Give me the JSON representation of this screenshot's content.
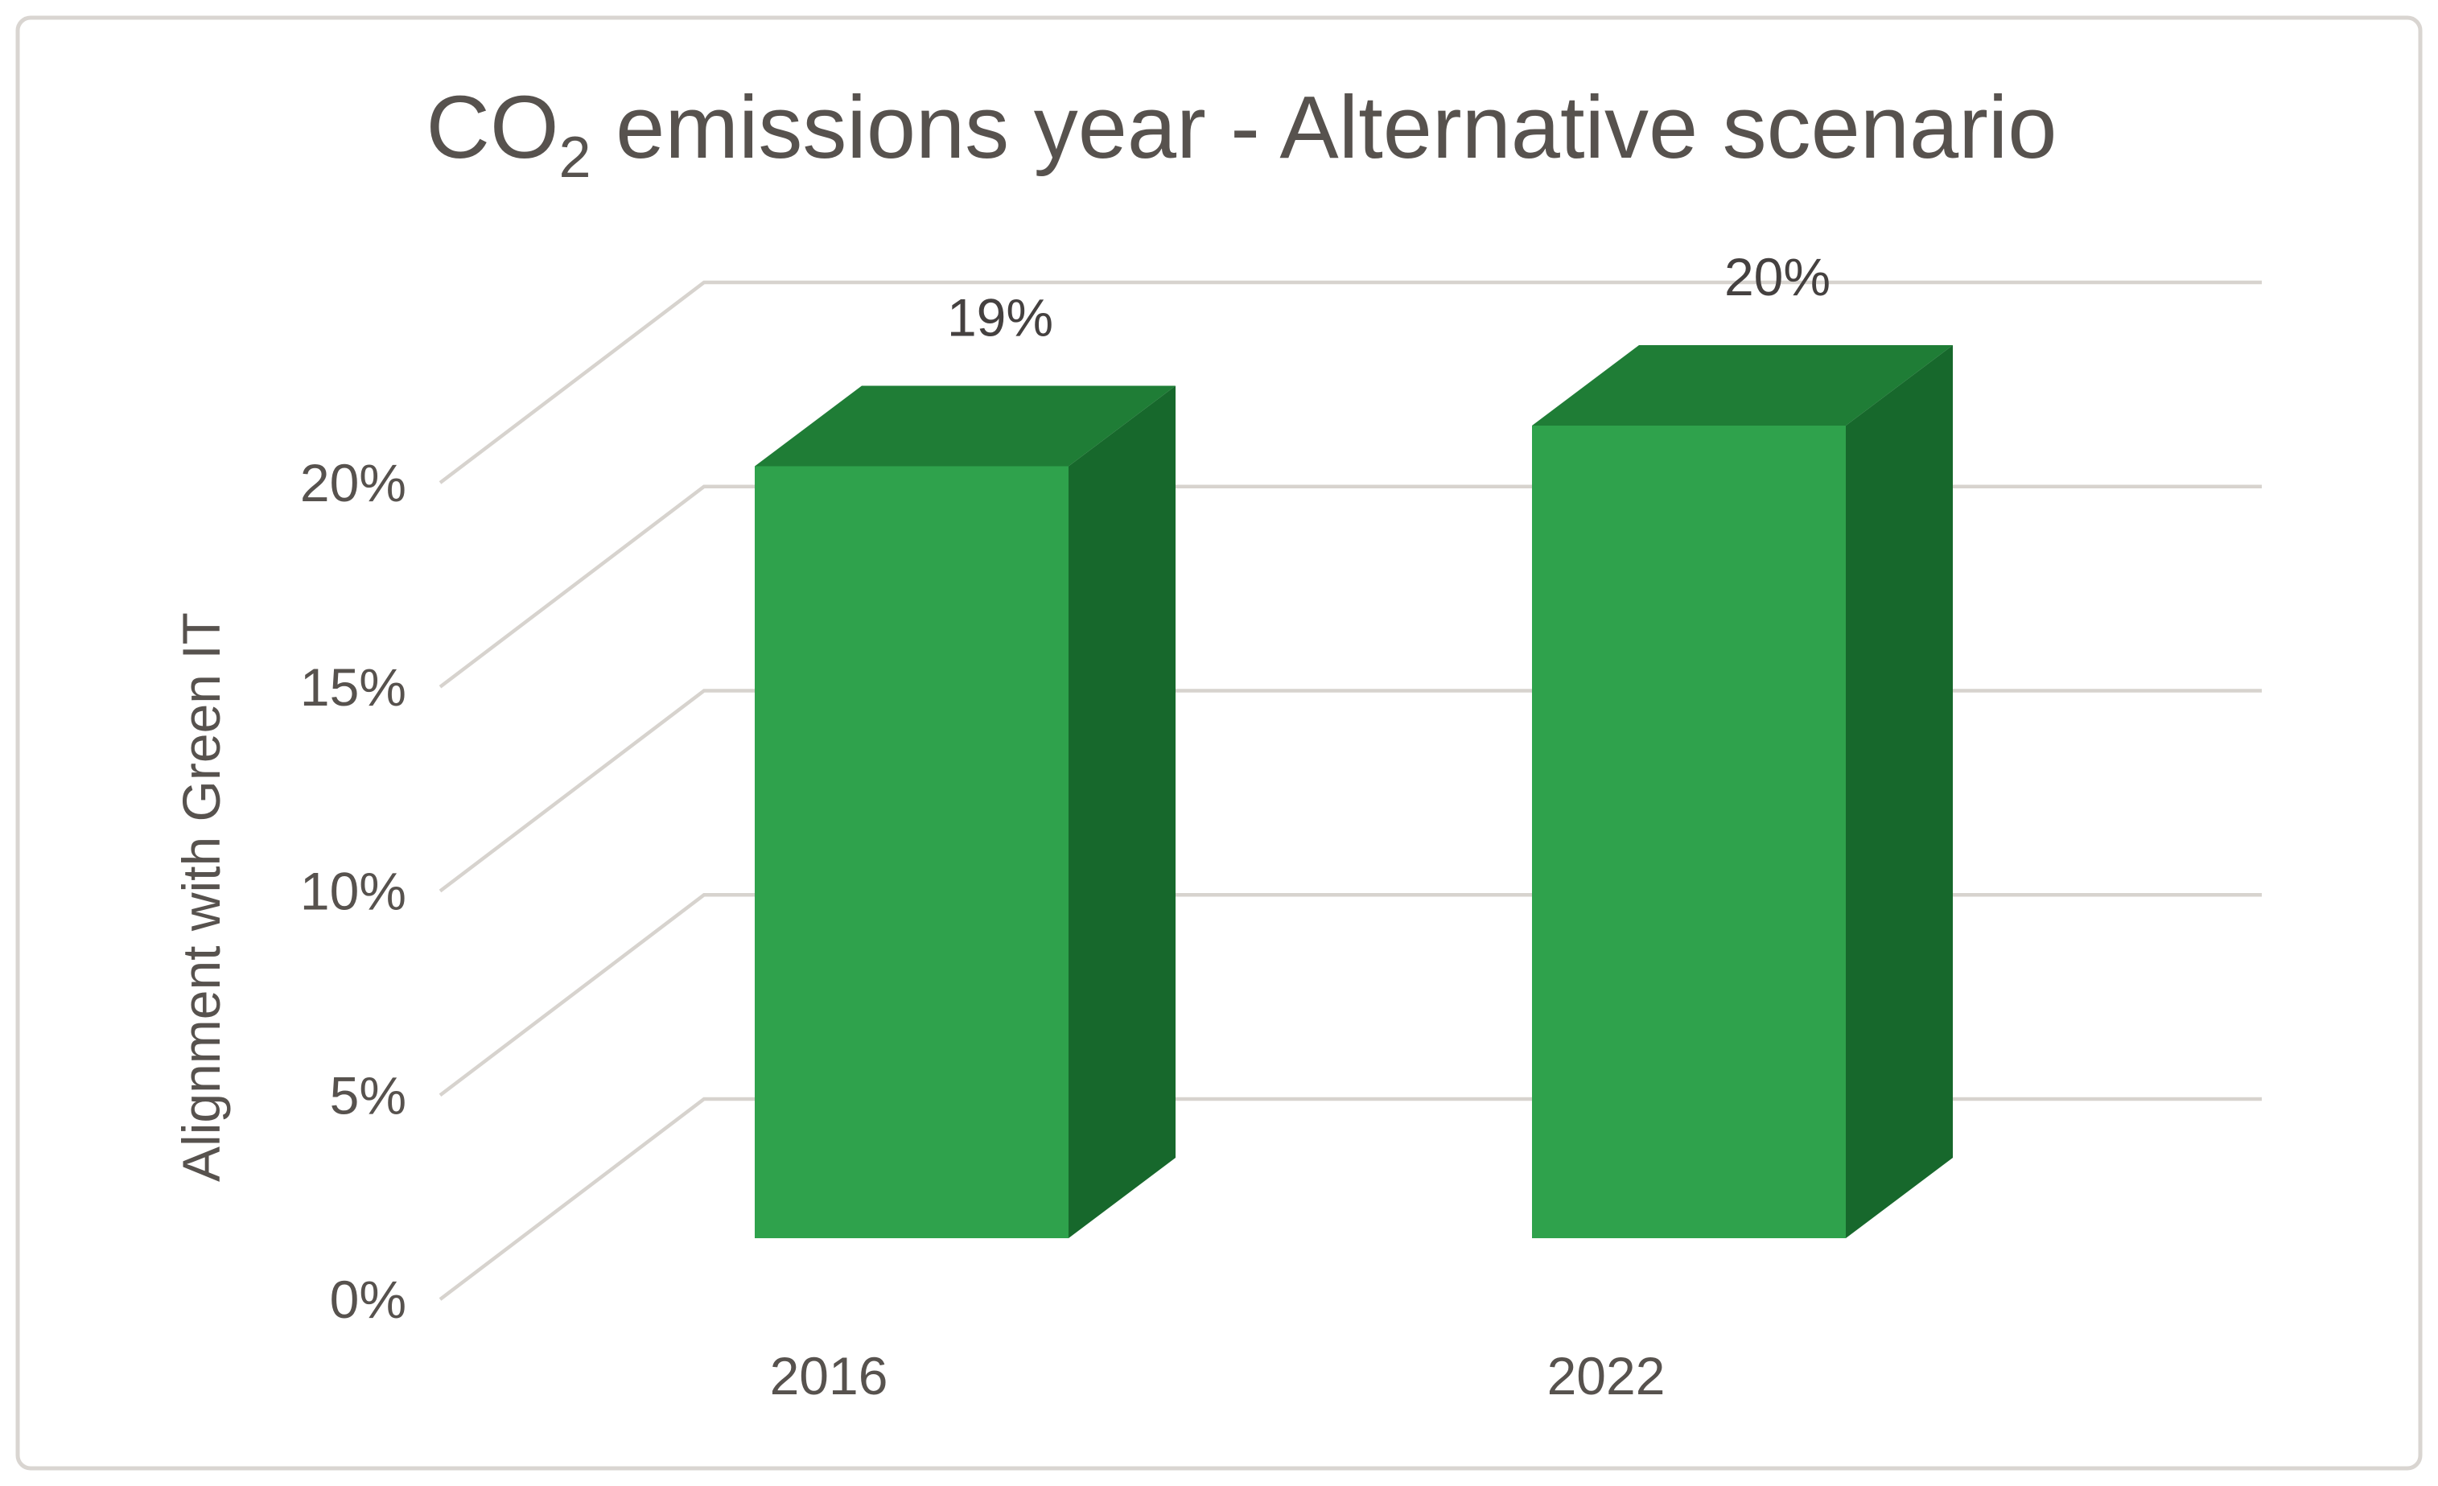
{
  "window": {
    "background": "#ffffff",
    "border_color": "#d9d5d1"
  },
  "chart_data": {
    "type": "bar",
    "projection": "3d",
    "title": {
      "prefix": "CO",
      "subscript": "2",
      "suffix": " emissions year - Alternative scenario"
    },
    "categories": [
      "2016",
      "2022"
    ],
    "values": [
      19,
      20
    ],
    "data_labels": [
      "19%",
      "20%"
    ],
    "xlabel": "",
    "ylabel": "Alignment with Green IT",
    "ylim": [
      0,
      20
    ],
    "yticks": [
      {
        "value": 0,
        "label": "0%"
      },
      {
        "value": 5,
        "label": "5%"
      },
      {
        "value": 10,
        "label": "10%"
      },
      {
        "value": 15,
        "label": "15%"
      },
      {
        "value": 20,
        "label": "20%"
      }
    ],
    "grid": true,
    "legend_position": "none",
    "colors": {
      "bar_front": "#2fa24c",
      "bar_top": "#1f7d36",
      "bar_side": "#17682c",
      "gridline": "#d7d3ce",
      "text": "#57524e",
      "data_label": "#454140"
    }
  }
}
